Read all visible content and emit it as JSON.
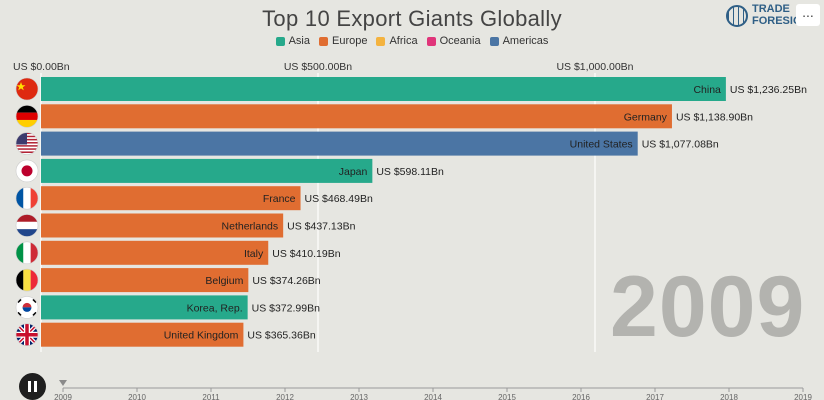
{
  "header": {
    "title": "Top 10 Export Giants Globally",
    "menu_label": "..."
  },
  "logo": {
    "line1": "TRADE",
    "line2": "FORESIGHT",
    "icon": "globe-icon"
  },
  "legend": [
    {
      "label": "Asia",
      "color": "#26a98b"
    },
    {
      "label": "Europe",
      "color": "#e06d31"
    },
    {
      "label": "Africa",
      "color": "#f4b33f"
    },
    {
      "label": "Oceania",
      "color": "#e0357a"
    },
    {
      "label": "Americas",
      "color": "#4b75a4"
    }
  ],
  "year_label": "2009",
  "controls": {
    "play_icon": "pause-icon"
  },
  "chart_data": {
    "type": "bar",
    "orientation": "horizontal",
    "title": "Top 10 Export Giants Globally",
    "xlim": [
      0,
      1250
    ],
    "x_ticks": [
      {
        "value": 0,
        "label": "US $0.00Bn"
      },
      {
        "value": 500,
        "label": "US $500.00Bn"
      },
      {
        "value": 1000,
        "label": "US $1,000.00Bn"
      }
    ],
    "categories": [
      "China",
      "Germany",
      "United States",
      "Japan",
      "France",
      "Netherlands",
      "Italy",
      "Belgium",
      "Korea, Rep.",
      "United Kingdom"
    ],
    "values": [
      1236.25,
      1138.9,
      1077.08,
      598.11,
      468.49,
      437.13,
      410.19,
      374.26,
      372.99,
      365.36
    ],
    "value_labels": [
      "US $1,236.25Bn",
      "US $1,138.90Bn",
      "US $1,077.08Bn",
      "US $598.11Bn",
      "US $468.49Bn",
      "US $437.13Bn",
      "US $410.19Bn",
      "US $374.26Bn",
      "US $372.99Bn",
      "US $365.36Bn"
    ],
    "regions": [
      "Asia",
      "Europe",
      "Americas",
      "Asia",
      "Europe",
      "Europe",
      "Europe",
      "Europe",
      "Asia",
      "Europe"
    ],
    "flag_icons": [
      "flag-china-icon",
      "flag-germany-icon",
      "flag-usa-icon",
      "flag-japan-icon",
      "flag-france-icon",
      "flag-netherlands-icon",
      "flag-italy-icon",
      "flag-belgium-icon",
      "flag-korea-icon",
      "flag-uk-icon"
    ],
    "timeline": {
      "years": [
        "2009",
        "2010",
        "2011",
        "2012",
        "2013",
        "2014",
        "2015",
        "2016",
        "2017",
        "2018",
        "2019"
      ],
      "current": "2009"
    },
    "grid": true,
    "legend_position": "top-center"
  }
}
